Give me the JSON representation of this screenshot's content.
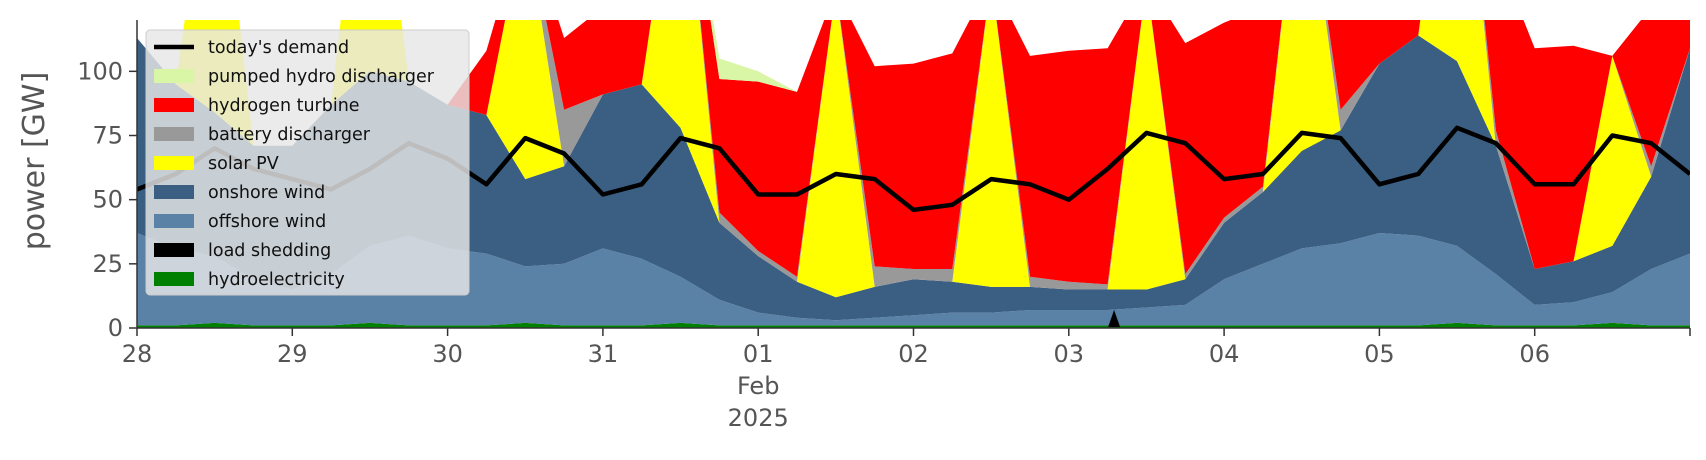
{
  "chart_data": {
    "type": "area",
    "title": "",
    "xlabel": "",
    "ylabel": "power [GW]",
    "ylim": [
      0,
      120
    ],
    "xlim": [
      "2025-01-28",
      "2025-02-07"
    ],
    "yticks": [
      0,
      25,
      50,
      75,
      100
    ],
    "xticks": [
      {
        "date": "2025-01-28",
        "label": "28"
      },
      {
        "date": "2025-01-29",
        "label": "29"
      },
      {
        "date": "2025-01-30",
        "label": "30"
      },
      {
        "date": "2025-01-31",
        "label": "31"
      },
      {
        "date": "2025-02-01",
        "label": "01",
        "sub1": "Feb",
        "sub2": "2025"
      },
      {
        "date": "2025-02-02",
        "label": "02"
      },
      {
        "date": "2025-02-03",
        "label": "03"
      },
      {
        "date": "2025-02-04",
        "label": "04"
      },
      {
        "date": "2025-02-05",
        "label": "05"
      },
      {
        "date": "2025-02-06",
        "label": "06"
      }
    ],
    "grid": false,
    "legend_position": "top-left",
    "x": [
      "2025-01-28 00:00",
      "2025-01-28 06:00",
      "2025-01-28 12:00",
      "2025-01-28 18:00",
      "2025-01-29 00:00",
      "2025-01-29 06:00",
      "2025-01-29 12:00",
      "2025-01-29 18:00",
      "2025-01-30 00:00",
      "2025-01-30 06:00",
      "2025-01-30 12:00",
      "2025-01-30 18:00",
      "2025-01-31 00:00",
      "2025-01-31 06:00",
      "2025-01-31 12:00",
      "2025-01-31 18:00",
      "2025-02-01 00:00",
      "2025-02-01 06:00",
      "2025-02-01 12:00",
      "2025-02-01 18:00",
      "2025-02-02 00:00",
      "2025-02-02 06:00",
      "2025-02-02 12:00",
      "2025-02-02 18:00",
      "2025-02-03 00:00",
      "2025-02-03 06:00",
      "2025-02-03 12:00",
      "2025-02-03 18:00",
      "2025-02-04 00:00",
      "2025-02-04 06:00",
      "2025-02-04 12:00",
      "2025-02-04 18:00",
      "2025-02-05 00:00",
      "2025-02-05 06:00",
      "2025-02-05 12:00",
      "2025-02-05 18:00",
      "2025-02-06 00:00",
      "2025-02-06 06:00",
      "2025-02-06 12:00",
      "2025-02-06 18:00",
      "2025-02-07 00:00"
    ],
    "series": [
      {
        "name": "hydroelectricity",
        "color": "#008000",
        "values": [
          1,
          1,
          2,
          1,
          1,
          1,
          2,
          1,
          1,
          1,
          2,
          1,
          1,
          1,
          2,
          1,
          1,
          1,
          1,
          1,
          1,
          1,
          1,
          1,
          1,
          1,
          1,
          1,
          1,
          1,
          1,
          1,
          1,
          1,
          2,
          1,
          1,
          1,
          2,
          1,
          1
        ]
      },
      {
        "name": "load shedding",
        "color": "#000000",
        "values": [
          0,
          0,
          0,
          0,
          0,
          0,
          0,
          0,
          0,
          0,
          0,
          0,
          0,
          0,
          0,
          0,
          0,
          0,
          0,
          0,
          0,
          0,
          0,
          0,
          0,
          0,
          0,
          0,
          0,
          0,
          0,
          0,
          0,
          0,
          0,
          0,
          0,
          0,
          0,
          0,
          0
        ]
      },
      {
        "name": "offshore wind",
        "color": "#5a82a6",
        "values": [
          36,
          30,
          26,
          18,
          14,
          20,
          30,
          35,
          30,
          28,
          22,
          24,
          30,
          26,
          18,
          10,
          5,
          3,
          2,
          3,
          4,
          5,
          5,
          6,
          6,
          6,
          7,
          8,
          18,
          24,
          30,
          32,
          36,
          35,
          30,
          20,
          8,
          9,
          12,
          22,
          28
        ]
      },
      {
        "name": "onshore wind",
        "color": "#3b5f82",
        "values": [
          76,
          64,
          56,
          52,
          56,
          66,
          68,
          60,
          56,
          54,
          34,
          38,
          60,
          68,
          58,
          30,
          22,
          14,
          9,
          12,
          14,
          12,
          10,
          9,
          8,
          8,
          7,
          10,
          22,
          28,
          38,
          44,
          66,
          78,
          72,
          50,
          14,
          16,
          18,
          36,
          80
        ]
      },
      {
        "name": "solar PV",
        "color": "#ffff00",
        "values": [
          0,
          0,
          120,
          0,
          0,
          0,
          120,
          0,
          0,
          0,
          102,
          0,
          0,
          0,
          120,
          0,
          0,
          0,
          120,
          0,
          0,
          0,
          120,
          0,
          0,
          0,
          120,
          0,
          0,
          0,
          120,
          0,
          0,
          0,
          120,
          0,
          0,
          0,
          74,
          0,
          0
        ]
      },
      {
        "name": "battery discharger",
        "color": "#999999",
        "values": [
          0,
          0,
          0,
          0,
          0,
          0,
          0,
          0,
          0,
          0,
          0,
          22,
          0,
          0,
          0,
          4,
          2,
          2,
          0,
          8,
          4,
          5,
          0,
          4,
          3,
          2,
          0,
          2,
          2,
          2,
          0,
          8,
          0,
          0,
          0,
          6,
          0,
          0,
          0,
          4,
          0
        ]
      },
      {
        "name": "hydrogen turbine",
        "color": "#ff0000",
        "values": [
          0,
          0,
          0,
          0,
          0,
          0,
          0,
          0,
          0,
          25,
          0,
          28,
          34,
          30,
          0,
          52,
          66,
          72,
          0,
          78,
          80,
          84,
          0,
          86,
          90,
          92,
          0,
          90,
          76,
          70,
          0,
          64,
          32,
          20,
          0,
          70,
          86,
          84,
          0,
          62,
          16
        ]
      },
      {
        "name": "pumped hydro discharger",
        "color": "#d9f5a6",
        "values": [
          0,
          0,
          0,
          0,
          0,
          0,
          0,
          0,
          0,
          0,
          0,
          0,
          0,
          0,
          0,
          8,
          4,
          0,
          0,
          0,
          0,
          0,
          0,
          0,
          0,
          0,
          0,
          0,
          0,
          0,
          0,
          0,
          0,
          0,
          0,
          0,
          0,
          0,
          0,
          0,
          0
        ]
      }
    ],
    "demand": {
      "name": "today's demand",
      "color": "#000000",
      "values": [
        54,
        60,
        70,
        62,
        58,
        54,
        62,
        72,
        66,
        56,
        74,
        68,
        52,
        56,
        74,
        70,
        52,
        52,
        60,
        58,
        46,
        48,
        58,
        56,
        50,
        62,
        76,
        72,
        58,
        60,
        76,
        74,
        56,
        60,
        78,
        72,
        56,
        56,
        75,
        72,
        60
      ]
    },
    "annotations": [
      {
        "type": "marker",
        "x": "2025-02-03 07:00",
        "y": 0,
        "shape": "triangle",
        "color": "#000000"
      }
    ]
  }
}
